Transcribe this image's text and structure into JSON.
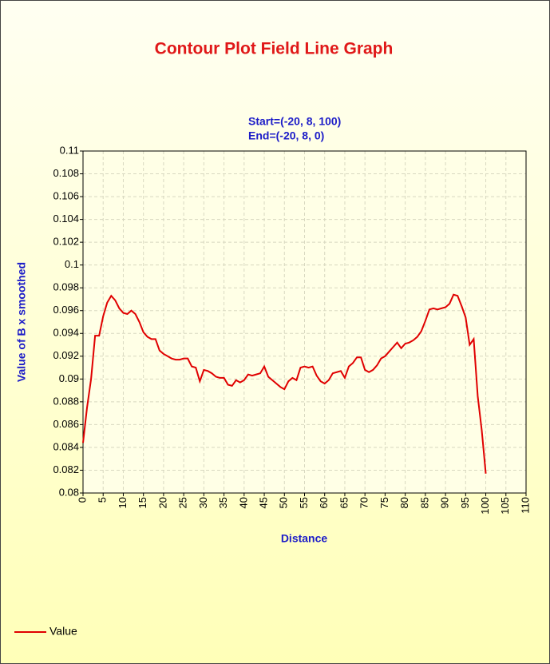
{
  "chart_data": {
    "type": "line",
    "title": "Contour Plot Field Line Graph",
    "subtitle": [
      "Start=(-20, 8, 100)",
      "End=(-20, 8, 0)"
    ],
    "x_label": "Distance",
    "y_label": "Value of B x smoothed",
    "x": [
      0,
      1,
      2,
      3,
      4,
      5,
      6,
      7,
      8,
      9,
      10,
      11,
      12,
      13,
      14,
      15,
      16,
      17,
      18,
      19,
      20,
      21,
      22,
      23,
      24,
      25,
      26,
      27,
      28,
      29,
      30,
      31,
      32,
      33,
      34,
      35,
      36,
      37,
      38,
      39,
      40,
      41,
      42,
      43,
      44,
      45,
      46,
      47,
      48,
      49,
      50,
      51,
      52,
      53,
      54,
      55,
      56,
      57,
      58,
      59,
      60,
      61,
      62,
      63,
      64,
      65,
      66,
      67,
      68,
      69,
      70,
      71,
      72,
      73,
      74,
      75,
      76,
      77,
      78,
      79,
      80,
      81,
      82,
      83,
      84,
      85,
      86,
      87,
      88,
      89,
      90,
      91,
      92,
      93,
      94,
      95,
      96,
      97,
      98,
      99,
      100
    ],
    "series": [
      {
        "name": "Value",
        "color": "#e00000",
        "values": [
          0.0844,
          0.0875,
          0.09,
          0.0938,
          0.0938,
          0.0955,
          0.0967,
          0.0973,
          0.0969,
          0.0962,
          0.0958,
          0.0957,
          0.096,
          0.0957,
          0.095,
          0.0941,
          0.0937,
          0.0935,
          0.0935,
          0.0925,
          0.0922,
          0.092,
          0.0918,
          0.0917,
          0.0917,
          0.0918,
          0.0918,
          0.0911,
          0.091,
          0.0898,
          0.0908,
          0.0907,
          0.0905,
          0.0902,
          0.0901,
          0.0901,
          0.0895,
          0.0894,
          0.0899,
          0.0897,
          0.0899,
          0.0904,
          0.0903,
          0.0904,
          0.0905,
          0.0911,
          0.0902,
          0.0899,
          0.0896,
          0.0893,
          0.0891,
          0.0898,
          0.0901,
          0.0899,
          0.091,
          0.0911,
          0.091,
          0.0911,
          0.0903,
          0.0898,
          0.0896,
          0.0899,
          0.0905,
          0.0906,
          0.0907,
          0.0901,
          0.0911,
          0.0914,
          0.0919,
          0.0919,
          0.0908,
          0.0906,
          0.0908,
          0.0912,
          0.0918,
          0.092,
          0.0924,
          0.0928,
          0.0932,
          0.0927,
          0.0931,
          0.0932,
          0.0934,
          0.0937,
          0.0942,
          0.0951,
          0.0961,
          0.0962,
          0.0961,
          0.0962,
          0.0963,
          0.0966,
          0.0974,
          0.0973,
          0.0964,
          0.0954,
          0.093,
          0.0935,
          0.0885,
          0.0855,
          0.0817
        ]
      }
    ],
    "xlim": [
      0,
      110
    ],
    "xticks": [
      0,
      5,
      10,
      15,
      20,
      25,
      30,
      35,
      40,
      45,
      50,
      55,
      60,
      65,
      70,
      75,
      80,
      85,
      90,
      95,
      100,
      105,
      110
    ],
    "ylim": [
      0.08,
      0.11
    ],
    "yticks": [
      0.08,
      0.082,
      0.084,
      0.086,
      0.088,
      0.09,
      0.092,
      0.094,
      0.096,
      0.098,
      0.1,
      0.102,
      0.104,
      0.106,
      0.108,
      0.11
    ],
    "grid": true,
    "legend": "bottom-left"
  }
}
